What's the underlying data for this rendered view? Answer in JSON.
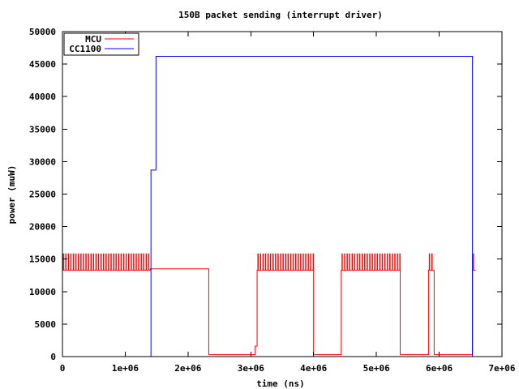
{
  "chart_data": {
    "type": "line",
    "title": "150B packet sending (interrupt driver)",
    "xlabel": "time (ns)",
    "ylabel": "power (muW)",
    "xlim": [
      0,
      7000000
    ],
    "ylim": [
      0,
      50000
    ],
    "x_ticks": [
      0,
      1000000,
      2000000,
      3000000,
      4000000,
      5000000,
      6000000,
      7000000
    ],
    "x_tick_labels": [
      "0",
      "1e+06",
      "2e+06",
      "3e+06",
      "4e+06",
      "5e+06",
      "6e+06",
      "7e+06"
    ],
    "y_ticks": [
      0,
      5000,
      10000,
      15000,
      20000,
      25000,
      30000,
      35000,
      40000,
      45000,
      50000
    ],
    "y_tick_labels": [
      "0",
      "5000",
      "10000",
      "15000",
      "20000",
      "25000",
      "30000",
      "35000",
      "40000",
      "45000",
      "50000"
    ],
    "grid": false,
    "legend_position": "top-left",
    "series": [
      {
        "name": "MCU",
        "color": "#ff0000",
        "description_of_shape": "oscillating between ~13300 and ~15800 during active bursts, flat ~13500 mid-segment, dropping to ~300 in idle gaps",
        "segments": [
          {
            "x_start": 0,
            "x_end": 1400000,
            "mode": "burst",
            "low": 13300,
            "high": 15800
          },
          {
            "x_start": 1400000,
            "x_end": 2330000,
            "mode": "flat",
            "value": 13500
          },
          {
            "x_start": 2330000,
            "x_end": 3070000,
            "mode": "flat",
            "value": 300
          },
          {
            "x_start": 3070000,
            "x_end": 3100000,
            "mode": "flat",
            "value": 1600
          },
          {
            "x_start": 3100000,
            "x_end": 4000000,
            "mode": "burst",
            "low": 13300,
            "high": 15800
          },
          {
            "x_start": 4000000,
            "x_end": 4440000,
            "mode": "flat",
            "value": 300
          },
          {
            "x_start": 4440000,
            "x_end": 5380000,
            "mode": "burst",
            "low": 13300,
            "high": 15800
          },
          {
            "x_start": 5380000,
            "x_end": 5830000,
            "mode": "flat",
            "value": 300
          },
          {
            "x_start": 5830000,
            "x_end": 5920000,
            "mode": "burst",
            "low": 13300,
            "high": 15800
          },
          {
            "x_start": 5920000,
            "x_end": 6530000,
            "mode": "flat",
            "value": 300
          },
          {
            "x_start": 6530000,
            "x_end": 6580000,
            "mode": "burst",
            "low": 13300,
            "high": 15800
          }
        ]
      },
      {
        "name": "CC1100",
        "color": "#0000ff",
        "points": [
          [
            0,
            0
          ],
          [
            1410000,
            0
          ],
          [
            1410000,
            28700
          ],
          [
            1490000,
            28700
          ],
          [
            1490000,
            46200
          ],
          [
            6530000,
            46200
          ],
          [
            6530000,
            0
          ],
          [
            6580000,
            0
          ]
        ]
      }
    ]
  }
}
